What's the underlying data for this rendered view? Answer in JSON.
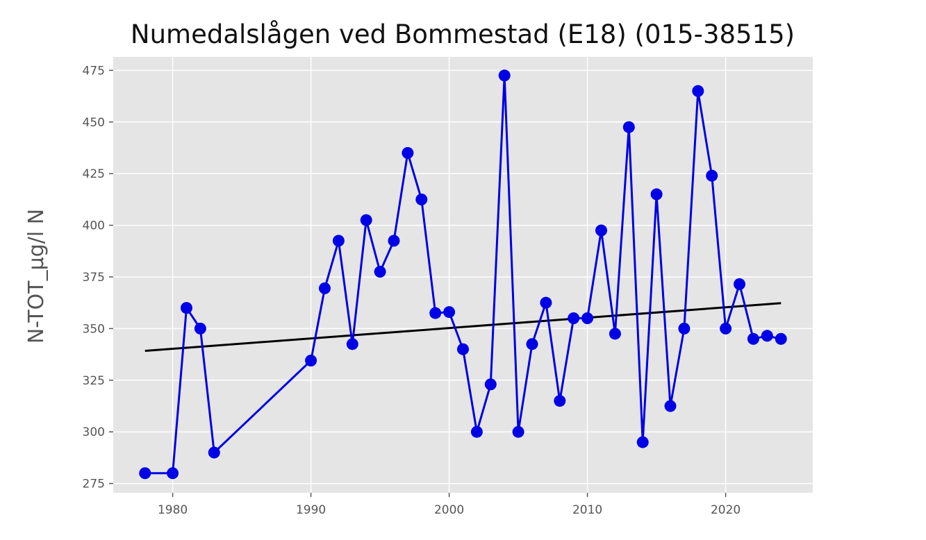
{
  "chart_data": {
    "type": "line",
    "title": "Numedalslågen ved Bommestad (E18) (015-38515)",
    "xlabel": "",
    "ylabel": "N-TOT_µg/l N",
    "xlim": [
      1975.7,
      2026.3
    ],
    "ylim": [
      270.5,
      481.5
    ],
    "xticks": [
      1980,
      1990,
      2000,
      2010,
      2020
    ],
    "yticks": [
      275,
      300,
      325,
      350,
      375,
      400,
      425,
      450,
      475
    ],
    "grid": true,
    "legend": "none",
    "colors": {
      "series": "#0000e6",
      "trend": "#000000",
      "panel": "#e5e5e5",
      "grid": "#ffffff"
    },
    "series": [
      {
        "x": [
          1978,
          1980,
          1981,
          1982,
          1983,
          1990,
          1991,
          1992,
          1993,
          1994,
          1995,
          1996,
          1997,
          1998,
          1999,
          2000,
          2001,
          2002,
          2003,
          2004,
          2005,
          2006,
          2007,
          2008,
          2009,
          2010,
          2011,
          2012,
          2013,
          2014,
          2015,
          2016,
          2017,
          2018,
          2019,
          2020,
          2021,
          2022,
          2023,
          2024
        ],
        "y": [
          280,
          280,
          360,
          350,
          290,
          334.5,
          369.5,
          392.5,
          342.5,
          402.5,
          377.5,
          392.5,
          435,
          412.5,
          357.5,
          358,
          340,
          300,
          323,
          472.5,
          300,
          342.5,
          362.5,
          315,
          355,
          355,
          397.5,
          347.5,
          447.5,
          295,
          415,
          312.5,
          350,
          465,
          424,
          350,
          371.5,
          345,
          346.5,
          345
        ]
      }
    ],
    "trend": {
      "x": [
        1978,
        2024
      ],
      "y": [
        339.2,
        362.3
      ]
    }
  }
}
